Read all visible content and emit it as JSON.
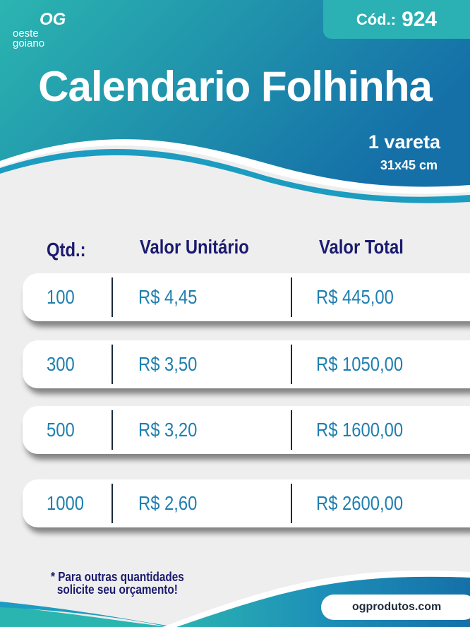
{
  "brand": {
    "logo_mark": "OG",
    "logo_word1": "oeste",
    "logo_word2": "goiano",
    "site": "ogprodutos.com"
  },
  "code": {
    "label": "Cód.:",
    "number": "924"
  },
  "title": "Calendario Folhinha",
  "subtitle": {
    "line1": "1 vareta",
    "line2": "31x45 cm"
  },
  "colors": {
    "teal": "#2bb5b0",
    "blue": "#1570a8",
    "navy": "#1b1a6e",
    "value": "#1f7fb0"
  },
  "table": {
    "headers": [
      "Qtd.:",
      "Valor Unitário",
      "Valor Total"
    ],
    "rows": [
      {
        "qty": "100",
        "unit": "R$ 4,45",
        "total": "R$ 445,00"
      },
      {
        "qty": "300",
        "unit": "R$ 3,50",
        "total": "R$ 1050,00"
      },
      {
        "qty": "500",
        "unit": "R$ 3,20",
        "total": "R$ 1600,00"
      },
      {
        "qty": "1000",
        "unit": "R$ 2,60",
        "total": "R$ 2600,00"
      }
    ]
  },
  "note": {
    "line1": "* Para outras quantidades",
    "line2": "solicite seu orçamento!"
  }
}
